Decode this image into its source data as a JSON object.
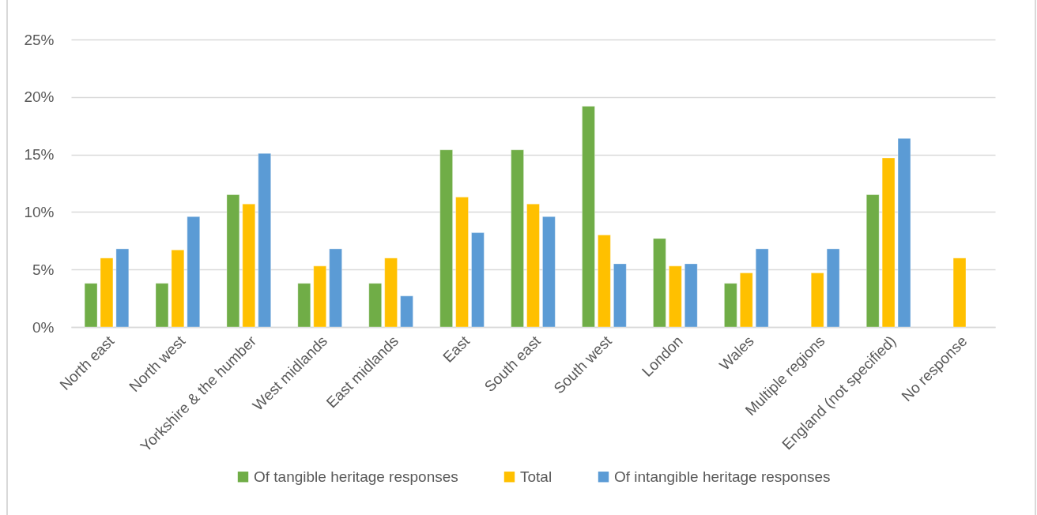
{
  "chart_data": {
    "type": "bar",
    "categories": [
      "North east",
      "North west",
      "Yorkshire & the humber",
      "West midlands",
      "East midlands",
      "East",
      "South east",
      "South west",
      "London",
      "Wales",
      "Multiple regions",
      "England (not specified)",
      "No response"
    ],
    "series": [
      {
        "name": "Of tangible heritage responses",
        "color": "#70ad47",
        "values": [
          3.8,
          3.8,
          11.5,
          3.8,
          3.8,
          15.4,
          15.4,
          19.2,
          7.7,
          3.8,
          null,
          11.5,
          null
        ]
      },
      {
        "name": "Total",
        "color": "#ffc000",
        "values": [
          6.0,
          6.7,
          10.7,
          5.3,
          6.0,
          11.3,
          10.7,
          8.0,
          5.3,
          4.7,
          4.7,
          14.7,
          6.0
        ]
      },
      {
        "name": "Of intangible heritage responses",
        "color": "#5b9bd5",
        "values": [
          6.8,
          9.6,
          15.1,
          6.8,
          2.7,
          8.2,
          9.6,
          5.5,
          5.5,
          6.8,
          6.8,
          16.4,
          null
        ]
      }
    ],
    "ylim": [
      0,
      25
    ],
    "yticks": [
      {
        "value": 0,
        "label": "0%"
      },
      {
        "value": 5,
        "label": "5%"
      },
      {
        "value": 10,
        "label": "10%"
      },
      {
        "value": 15,
        "label": "15%"
      },
      {
        "value": 20,
        "label": "20%"
      },
      {
        "value": 25,
        "label": "25%"
      }
    ],
    "grid": "y",
    "legend": "bottom"
  }
}
